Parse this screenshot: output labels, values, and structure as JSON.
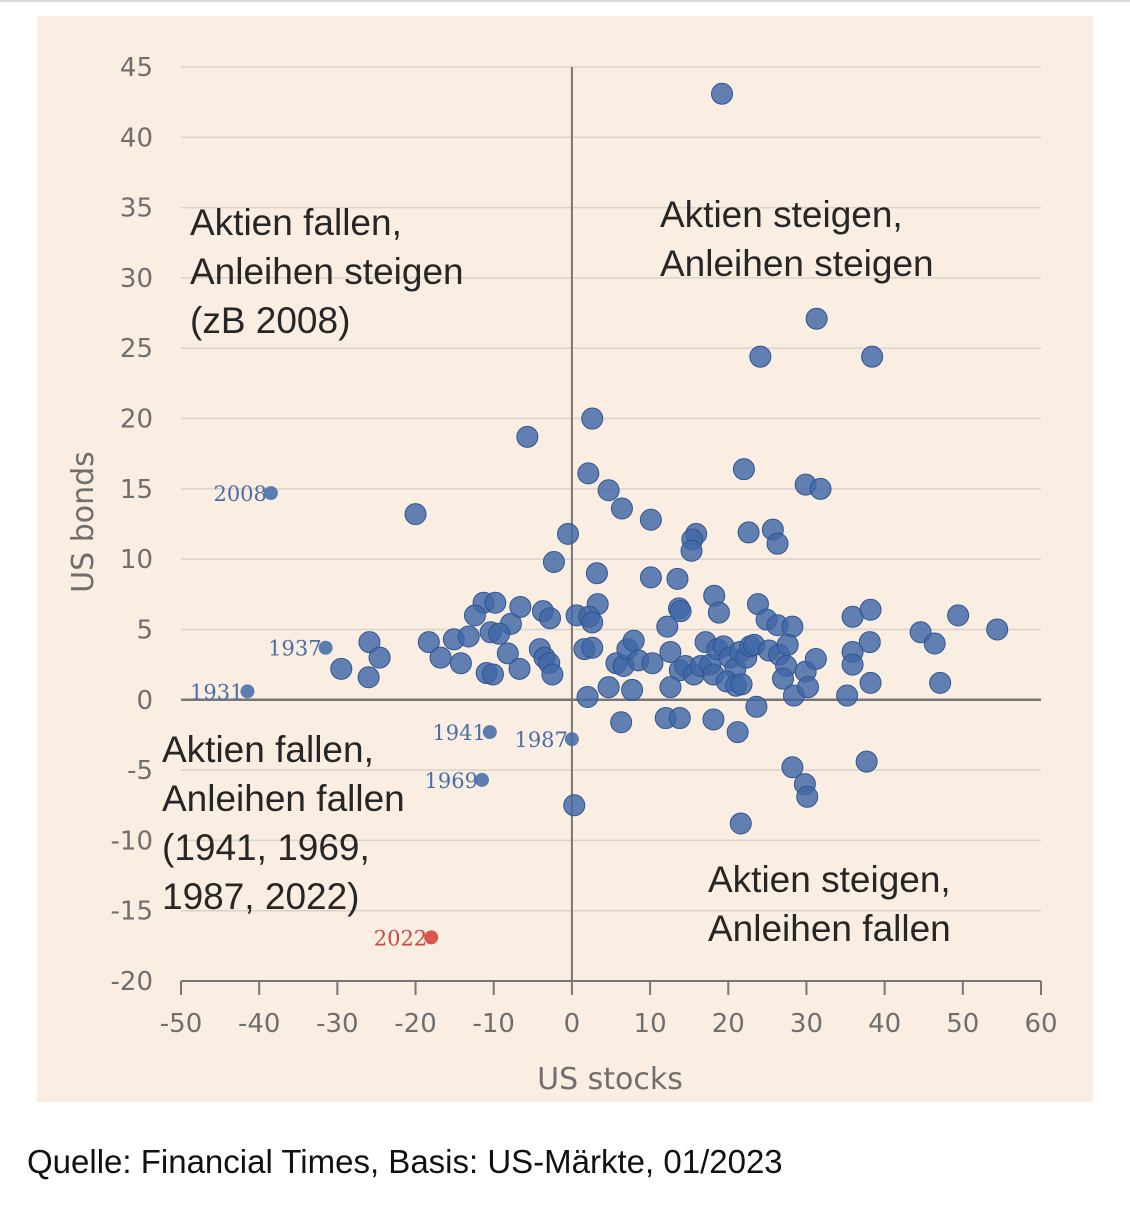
{
  "source": "Quelle: Financial Times, Basis: US-Märkte, 01/2023",
  "colors": {
    "panel": "#faeee3",
    "dot": "#3f68a6",
    "highlight": "#d23c33",
    "grid": "#dcd2c8",
    "axis": "#777777"
  },
  "chart_data": {
    "type": "scatter",
    "title": "",
    "xlabel": "US stocks",
    "ylabel": "US bonds",
    "xlim": [
      -50,
      60
    ],
    "ylim": [
      -20,
      45
    ],
    "xticks": [
      "-50",
      "-40",
      "-30",
      "-20",
      "-10",
      "0",
      "10",
      "20",
      "30",
      "40",
      "50",
      "60"
    ],
    "yticks": [
      "45",
      "40",
      "35",
      "30",
      "25",
      "20",
      "15",
      "10",
      "5",
      "0",
      "-5",
      "-10",
      "-15",
      "-20"
    ],
    "grid": "horizontal",
    "quadrant_labels": [
      {
        "lines": [
          "Aktien fallen,",
          "Anleihen steigen",
          "(zB 2008)"
        ]
      },
      {
        "lines": [
          "Aktien steigen,",
          "Anleihen steigen"
        ]
      },
      {
        "lines": [
          "Aktien fallen,",
          "Anleihen fallen",
          "(1941, 1969,",
          "1987, 2022)"
        ]
      },
      {
        "lines": [
          "Aktien steigen,",
          "Anleihen fallen"
        ]
      }
    ],
    "labeled_points": [
      {
        "label": "2008",
        "x": -38.5,
        "y": 14.7,
        "highlight": false
      },
      {
        "label": "1937",
        "x": -31.5,
        "y": 3.7,
        "highlight": false
      },
      {
        "label": "1931",
        "x": -41.5,
        "y": 0.6,
        "highlight": false
      },
      {
        "label": "1941",
        "x": -10.5,
        "y": -2.3,
        "highlight": false
      },
      {
        "label": "1987",
        "x": 0.0,
        "y": -2.8,
        "highlight": false
      },
      {
        "label": "1969",
        "x": -11.5,
        "y": -5.7,
        "highlight": false
      },
      {
        "label": "2022",
        "x": -18.0,
        "y": -16.9,
        "highlight": true
      }
    ],
    "points": [
      [
        19.2,
        43.1
      ],
      [
        31.3,
        27.1
      ],
      [
        24.1,
        24.4
      ],
      [
        38.4,
        24.4
      ],
      [
        2.6,
        20.0
      ],
      [
        -5.7,
        18.7
      ],
      [
        2.1,
        16.1
      ],
      [
        22.0,
        16.4
      ],
      [
        4.7,
        14.9
      ],
      [
        29.9,
        15.3
      ],
      [
        31.8,
        15.0
      ],
      [
        -20.0,
        13.2
      ],
      [
        6.4,
        13.6
      ],
      [
        10.1,
        12.8
      ],
      [
        15.9,
        11.8
      ],
      [
        15.4,
        11.4
      ],
      [
        22.6,
        11.9
      ],
      [
        25.7,
        12.1
      ],
      [
        26.3,
        11.1
      ],
      [
        -0.5,
        11.8
      ],
      [
        15.3,
        10.6
      ],
      [
        -2.3,
        9.8
      ],
      [
        3.2,
        9.0
      ],
      [
        10.1,
        8.7
      ],
      [
        13.5,
        8.6
      ],
      [
        18.2,
        7.4
      ],
      [
        3.3,
        6.8
      ],
      [
        13.7,
        6.5
      ],
      [
        18.8,
        6.2
      ],
      [
        23.8,
        6.8
      ],
      [
        35.9,
        5.9
      ],
      [
        38.2,
        6.4
      ],
      [
        49.4,
        6.0
      ],
      [
        -11.3,
        6.9
      ],
      [
        -9.8,
        6.9
      ],
      [
        -7.8,
        5.4
      ],
      [
        -6.6,
        6.6
      ],
      [
        -3.7,
        6.3
      ],
      [
        -2.8,
        5.8
      ],
      [
        0.6,
        6.0
      ],
      [
        2.2,
        5.9
      ],
      [
        2.6,
        5.5
      ],
      [
        12.2,
        5.2
      ],
      [
        13.9,
        6.3
      ],
      [
        24.9,
        5.7
      ],
      [
        26.3,
        5.3
      ],
      [
        28.2,
        5.2
      ],
      [
        44.6,
        4.8
      ],
      [
        46.4,
        4.0
      ],
      [
        54.4,
        5.0
      ],
      [
        -18.3,
        4.1
      ],
      [
        -15.1,
        4.3
      ],
      [
        -13.2,
        4.5
      ],
      [
        -12.4,
        6.0
      ],
      [
        -10.4,
        4.8
      ],
      [
        -9.3,
        4.7
      ],
      [
        -8.2,
        3.3
      ],
      [
        -4.1,
        3.6
      ],
      [
        -3.5,
        3.0
      ],
      [
        -25.9,
        4.1
      ],
      [
        -24.6,
        3.0
      ],
      [
        -16.8,
        3.0
      ],
      [
        -14.2,
        2.6
      ],
      [
        -29.5,
        2.2
      ],
      [
        -26.0,
        1.6
      ],
      [
        -10.9,
        1.9
      ],
      [
        -10.1,
        1.8
      ],
      [
        -6.7,
        2.2
      ],
      [
        -2.9,
        2.6
      ],
      [
        -2.5,
        1.8
      ],
      [
        1.6,
        3.6
      ],
      [
        2.6,
        3.7
      ],
      [
        5.7,
        2.6
      ],
      [
        6.6,
        2.4
      ],
      [
        7.1,
        3.6
      ],
      [
        7.9,
        4.2
      ],
      [
        8.5,
        2.8
      ],
      [
        10.3,
        2.6
      ],
      [
        12.6,
        3.4
      ],
      [
        13.8,
        2.1
      ],
      [
        14.5,
        2.4
      ],
      [
        15.6,
        1.8
      ],
      [
        16.5,
        2.4
      ],
      [
        17.1,
        4.1
      ],
      [
        17.7,
        2.5
      ],
      [
        18.6,
        3.6
      ],
      [
        19.4,
        3.8
      ],
      [
        20.2,
        3.0
      ],
      [
        20.9,
        2.2
      ],
      [
        21.5,
        3.4
      ],
      [
        22.3,
        3.0
      ],
      [
        22.8,
        3.8
      ],
      [
        23.3,
        3.9
      ],
      [
        25.2,
        3.5
      ],
      [
        26.5,
        3.2
      ],
      [
        27.4,
        2.4
      ],
      [
        27.6,
        3.9
      ],
      [
        29.9,
        2.0
      ],
      [
        31.2,
        2.9
      ],
      [
        35.9,
        3.4
      ],
      [
        35.9,
        2.5
      ],
      [
        38.1,
        4.1
      ],
      [
        4.7,
        0.9
      ],
      [
        7.7,
        0.7
      ],
      [
        12.6,
        0.9
      ],
      [
        18.1,
        1.8
      ],
      [
        19.8,
        1.3
      ],
      [
        21.0,
        1.0
      ],
      [
        21.7,
        1.1
      ],
      [
        27.0,
        1.5
      ],
      [
        28.4,
        0.3
      ],
      [
        30.2,
        0.9
      ],
      [
        35.2,
        0.3
      ],
      [
        38.2,
        1.2
      ],
      [
        47.1,
        1.2
      ],
      [
        2.0,
        0.2
      ],
      [
        12.0,
        -1.3
      ],
      [
        13.8,
        -1.3
      ],
      [
        18.1,
        -1.4
      ],
      [
        6.3,
        -1.6
      ],
      [
        21.2,
        -2.3
      ],
      [
        23.6,
        -0.5
      ],
      [
        28.2,
        -4.8
      ],
      [
        29.8,
        -6.0
      ],
      [
        30.1,
        -6.9
      ],
      [
        37.7,
        -4.4
      ],
      [
        0.3,
        -7.5
      ],
      [
        21.6,
        -8.8
      ]
    ]
  }
}
